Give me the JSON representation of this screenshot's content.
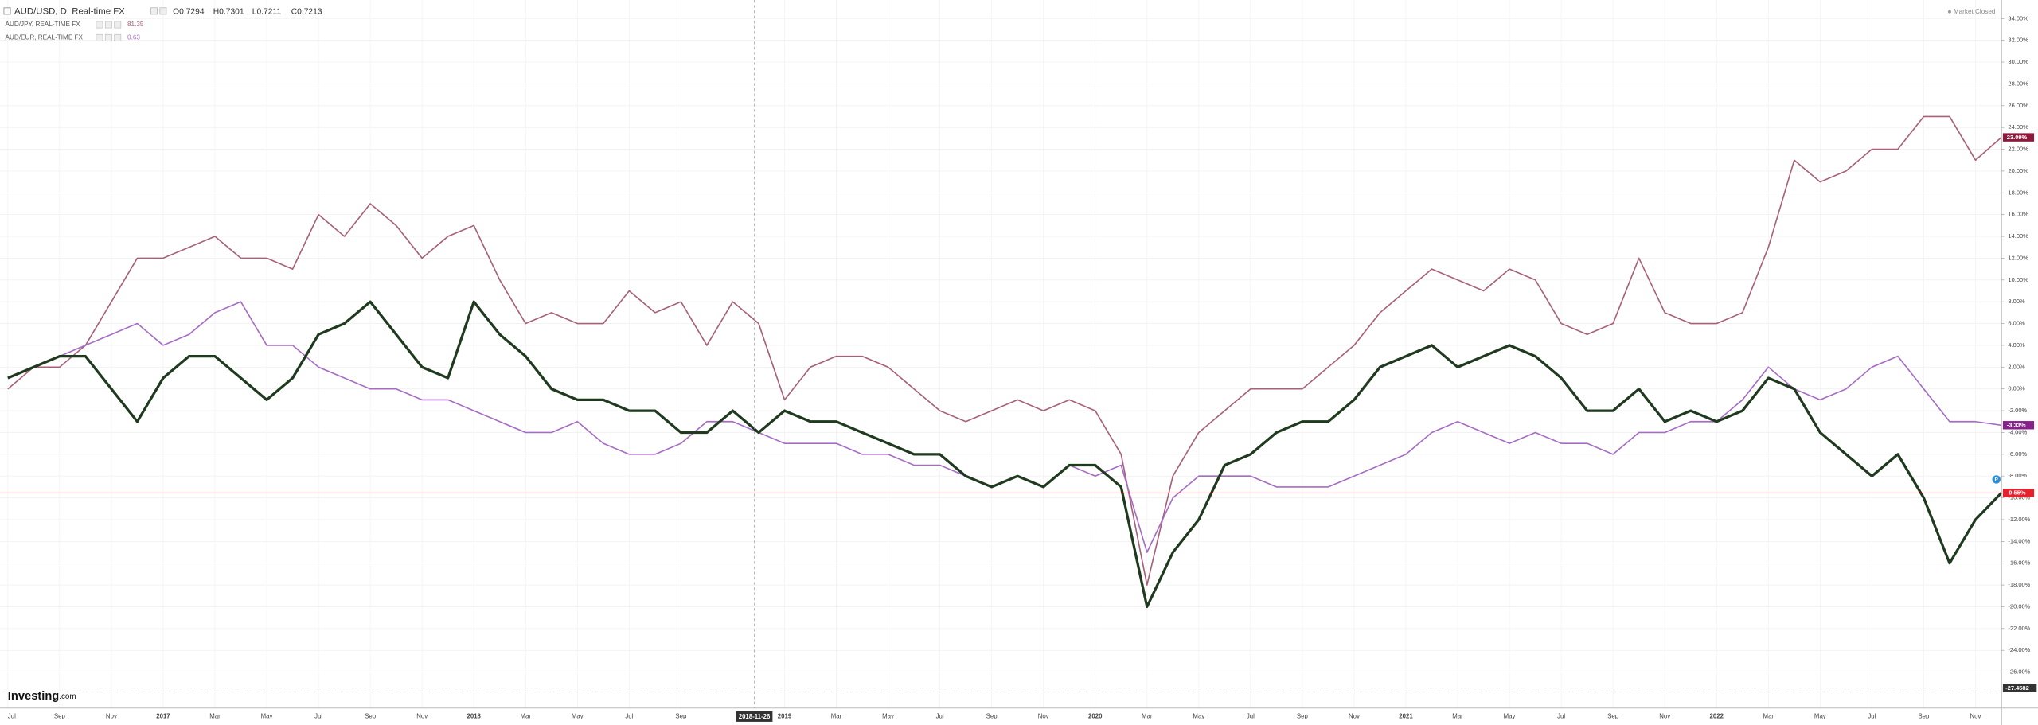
{
  "chart_data": {
    "type": "line",
    "title": "AUD/USD, D, Real-time FX",
    "ohlc": [
      "O0.7294",
      "H0.7301",
      "L0.7211",
      "C0.7213"
    ],
    "status": "Market Closed",
    "brand": "Investing",
    "brand_suffix": ".com",
    "x": [
      "2016-07",
      "2016-08",
      "2016-09",
      "2016-10",
      "2016-11",
      "2016-12",
      "2017-01",
      "2017-02",
      "2017-03",
      "2017-04",
      "2017-05",
      "2017-06",
      "2017-07",
      "2017-08",
      "2017-09",
      "2017-10",
      "2017-11",
      "2017-12",
      "2018-01",
      "2018-02",
      "2018-03",
      "2018-04",
      "2018-05",
      "2018-06",
      "2018-07",
      "2018-08",
      "2018-09",
      "2018-10",
      "2018-11",
      "2018-12",
      "2019-01",
      "2019-02",
      "2019-03",
      "2019-04",
      "2019-05",
      "2019-06",
      "2019-07",
      "2019-08",
      "2019-09",
      "2019-10",
      "2019-11",
      "2019-12",
      "2020-01",
      "2020-02",
      "2020-03",
      "2020-04",
      "2020-05",
      "2020-06",
      "2020-07",
      "2020-08",
      "2020-09",
      "2020-10",
      "2020-11",
      "2020-12",
      "2021-01",
      "2021-02",
      "2021-03",
      "2021-04",
      "2021-05",
      "2021-06",
      "2021-07",
      "2021-08",
      "2021-09",
      "2021-10",
      "2021-11",
      "2021-12",
      "2022-01",
      "2022-02",
      "2022-03",
      "2022-04",
      "2022-05",
      "2022-06",
      "2022-07",
      "2022-08",
      "2022-09",
      "2022-10",
      "2022-11",
      "2022-12"
    ],
    "series": [
      {
        "name": "AUD/JPY, REAL-TIME FX",
        "last_price": "81.35",
        "color": "#a8607a",
        "label_color": "#8b1a3c",
        "width": 1,
        "last_label": "23.09%",
        "values": [
          0,
          2,
          2,
          4,
          8,
          12,
          12,
          13,
          14,
          12,
          12,
          11,
          16,
          14,
          17,
          15,
          12,
          14,
          15,
          10,
          6,
          7,
          6,
          6,
          9,
          7,
          8,
          4,
          8,
          6,
          -1,
          2,
          3,
          3,
          2,
          0,
          -2,
          -3,
          -2,
          -1,
          -2,
          -1,
          -2,
          -6,
          -18,
          -8,
          -4,
          -2,
          0,
          0,
          0,
          2,
          4,
          7,
          9,
          11,
          10,
          9,
          11,
          10,
          6,
          5,
          6,
          12,
          7,
          6,
          6,
          7,
          13,
          21,
          19,
          20,
          22,
          22,
          25,
          25,
          21,
          23.09
        ]
      },
      {
        "name": "AUD/EUR, REAL-TIME FX",
        "last_price": "0.63",
        "color": "#a66cc4",
        "label_color": "#86228a",
        "width": 1,
        "last_label": "-3.33%",
        "values": [
          1,
          2,
          3,
          4,
          5,
          6,
          4,
          5,
          7,
          8,
          4,
          4,
          2,
          1,
          0,
          0,
          -1,
          -1,
          -2,
          -3,
          -4,
          -4,
          -3,
          -5,
          -6,
          -6,
          -5,
          -3,
          -3,
          -4,
          -5,
          -5,
          -5,
          -6,
          -6,
          -7,
          -7,
          -8,
          -9,
          -8,
          -9,
          -7,
          -8,
          -7,
          -15,
          -10,
          -8,
          -8,
          -8,
          -9,
          -9,
          -9,
          -8,
          -7,
          -6,
          -4,
          -3,
          -4,
          -5,
          -4,
          -5,
          -5,
          -6,
          -4,
          -4,
          -3,
          -3,
          -1,
          2,
          0,
          -1,
          0,
          2,
          3,
          0,
          -3,
          -3,
          -3.33
        ]
      },
      {
        "name": "AUD/USD",
        "color": "#1f3a1f",
        "label_color": "#e8202e",
        "width": 2,
        "last_label": "-9.55%",
        "values": [
          1,
          2,
          3,
          3,
          0,
          -3,
          1,
          3,
          3,
          1,
          -1,
          1,
          5,
          6,
          8,
          5,
          2,
          1,
          8,
          5,
          3,
          0,
          -1,
          -1,
          -2,
          -2,
          -4,
          -4,
          -2,
          -4,
          -2,
          -3,
          -3,
          -4,
          -5,
          -6,
          -6,
          -8,
          -9,
          -8,
          -9,
          -7,
          -7,
          -9,
          -20,
          -15,
          -12,
          -7,
          -6,
          -4,
          -3,
          -3,
          -1,
          2,
          3,
          4,
          2,
          3,
          4,
          3,
          1,
          -2,
          -2,
          0,
          -3,
          -2,
          -3,
          -2,
          1,
          0,
          -4,
          -6,
          -8,
          -6,
          -10,
          -16,
          -12,
          -9.55
        ]
      }
    ],
    "ylim": [
      -29.3,
      35.7
    ],
    "yticks": [
      {
        "value": 34,
        "label": "34.00%"
      },
      {
        "value": 32,
        "label": "32.00%"
      },
      {
        "value": 30,
        "label": "30.00%"
      },
      {
        "value": 28,
        "label": "28.00%"
      },
      {
        "value": 26,
        "label": "26.00%"
      },
      {
        "value": 24,
        "label": "24.00%"
      },
      {
        "value": 22,
        "label": "22.00%"
      },
      {
        "value": 20,
        "label": "20.00%"
      },
      {
        "value": 18,
        "label": "18.00%"
      },
      {
        "value": 16,
        "label": "16.00%"
      },
      {
        "value": 14,
        "label": "14.00%"
      },
      {
        "value": 12,
        "label": "12.00%"
      },
      {
        "value": 10,
        "label": "10.00%"
      },
      {
        "value": 8,
        "label": "8.00%"
      },
      {
        "value": 6,
        "label": "6.00%"
      },
      {
        "value": 4,
        "label": "4.00%"
      },
      {
        "value": 2,
        "label": "2.00%"
      },
      {
        "value": 0,
        "label": "0.00%"
      },
      {
        "value": -2,
        "label": "-2.00%"
      },
      {
        "value": -4,
        "label": "-4.00%"
      },
      {
        "value": -6,
        "label": "-6.00%"
      },
      {
        "value": -8,
        "label": "-8.00%"
      },
      {
        "value": -10,
        "label": "-10.00%"
      },
      {
        "value": -12,
        "label": "-12.00%"
      },
      {
        "value": -14,
        "label": "-14.00%"
      },
      {
        "value": -16,
        "label": "-16.00%"
      },
      {
        "value": -18,
        "label": "-18.00%"
      },
      {
        "value": -20,
        "label": "-20.00%"
      },
      {
        "value": -22,
        "label": "-22.00%"
      },
      {
        "value": -24,
        "label": "-24.00%"
      },
      {
        "value": -26,
        "label": "-26.00%"
      }
    ],
    "xticks": [
      {
        "value": "2016-07",
        "label": "Jul"
      },
      {
        "value": "2016-09",
        "label": "Sep"
      },
      {
        "value": "2016-11",
        "label": "Nov"
      },
      {
        "value": "2017-01",
        "label": "2017"
      },
      {
        "value": "2017-03",
        "label": "Mar"
      },
      {
        "value": "2017-05",
        "label": "May"
      },
      {
        "value": "2017-07",
        "label": "Jul"
      },
      {
        "value": "2017-09",
        "label": "Sep"
      },
      {
        "value": "2017-11",
        "label": "Nov"
      },
      {
        "value": "2018-01",
        "label": "2018"
      },
      {
        "value": "2018-03",
        "label": "Mar"
      },
      {
        "value": "2018-05",
        "label": "May"
      },
      {
        "value": "2018-07",
        "label": "Jul"
      },
      {
        "value": "2018-09",
        "label": "Sep"
      },
      {
        "value": "2019-01",
        "label": "2019"
      },
      {
        "value": "2019-03",
        "label": "Mar"
      },
      {
        "value": "2019-05",
        "label": "May"
      },
      {
        "value": "2019-07",
        "label": "Jul"
      },
      {
        "value": "2019-09",
        "label": "Sep"
      },
      {
        "value": "2019-11",
        "label": "Nov"
      },
      {
        "value": "2020-01",
        "label": "2020"
      },
      {
        "value": "2020-03",
        "label": "Mar"
      },
      {
        "value": "2020-05",
        "label": "May"
      },
      {
        "value": "2020-07",
        "label": "Jul"
      },
      {
        "value": "2020-09",
        "label": "Sep"
      },
      {
        "value": "2020-11",
        "label": "Nov"
      },
      {
        "value": "2021-01",
        "label": "2021"
      },
      {
        "value": "2021-03",
        "label": "Mar"
      },
      {
        "value": "2021-05",
        "label": "May"
      },
      {
        "value": "2021-07",
        "label": "Jul"
      },
      {
        "value": "2021-09",
        "label": "Sep"
      },
      {
        "value": "2021-11",
        "label": "Nov"
      },
      {
        "value": "2022-01",
        "label": "2022"
      },
      {
        "value": "2022-03",
        "label": "Mar"
      },
      {
        "value": "2022-05",
        "label": "May"
      },
      {
        "value": "2022-07",
        "label": "Jul"
      },
      {
        "value": "2022-09",
        "label": "Sep"
      },
      {
        "value": "2022-11",
        "label": "Nov"
      }
    ],
    "grid": true,
    "crosshair": {
      "x_label": "2018-11-26",
      "y_value": -27.4582
    }
  }
}
